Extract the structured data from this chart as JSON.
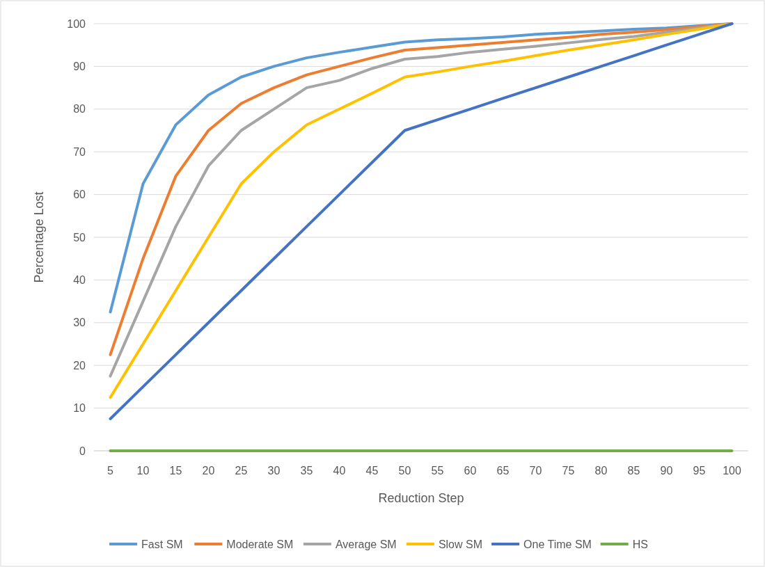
{
  "chart_data": {
    "type": "line",
    "xlabel": "Reduction Step",
    "ylabel": "Percentage Lost",
    "categories": [
      "5",
      "10",
      "15",
      "20",
      "25",
      "30",
      "35",
      "40",
      "45",
      "50",
      "55",
      "60",
      "65",
      "70",
      "75",
      "80",
      "85",
      "90",
      "95",
      "100"
    ],
    "series": [
      {
        "name": "Fast SM",
        "color": "#5b9bd5",
        "values": [
          32.5,
          62.5,
          76.3,
          83.3,
          87.5,
          90,
          92,
          93.3,
          94.5,
          95.7,
          96.2,
          96.5,
          96.9,
          97.5,
          97.9,
          98.3,
          98.7,
          99,
          99.5,
          100
        ]
      },
      {
        "name": "Moderate SM",
        "color": "#ed7d31",
        "values": [
          22.5,
          45,
          64.3,
          75,
          81.3,
          85,
          88,
          90,
          92,
          93.8,
          94.4,
          95,
          95.6,
          96.2,
          96.8,
          97.5,
          98,
          98.6,
          99.3,
          100
        ]
      },
      {
        "name": "Average SM",
        "color": "#a5a5a5",
        "values": [
          17.5,
          35,
          52.5,
          66.7,
          75,
          80,
          85,
          86.7,
          89.5,
          91.7,
          92.3,
          93.3,
          94,
          94.7,
          95.5,
          96.3,
          97,
          98,
          99,
          100
        ]
      },
      {
        "name": "Slow SM",
        "color": "#ffc000",
        "values": [
          12.5,
          25,
          37.5,
          50,
          62.5,
          70,
          76.3,
          80,
          83.7,
          87.5,
          88.7,
          90,
          91.2,
          92.5,
          93.8,
          95,
          96.2,
          97.5,
          98.7,
          100
        ]
      },
      {
        "name": "One Time SM",
        "color": "#4472c4",
        "values": [
          7.5,
          15,
          22.5,
          30,
          37.5,
          45,
          52.5,
          60,
          67.5,
          75,
          77.5,
          80,
          82.5,
          85,
          87.5,
          90,
          92.5,
          95,
          97.5,
          100
        ]
      },
      {
        "name": "HS",
        "color": "#70ad47",
        "values": [
          0,
          0,
          0,
          0,
          0,
          0,
          0,
          0,
          0,
          0,
          0,
          0,
          0,
          0,
          0,
          0,
          0,
          0,
          0,
          0
        ]
      }
    ],
    "ylim": [
      0,
      100
    ],
    "yticks": [
      0,
      10,
      20,
      30,
      40,
      50,
      60,
      70,
      80,
      90,
      100
    ],
    "grid": "y",
    "legend": "bottom",
    "marker": "none",
    "line_style": "solid"
  }
}
